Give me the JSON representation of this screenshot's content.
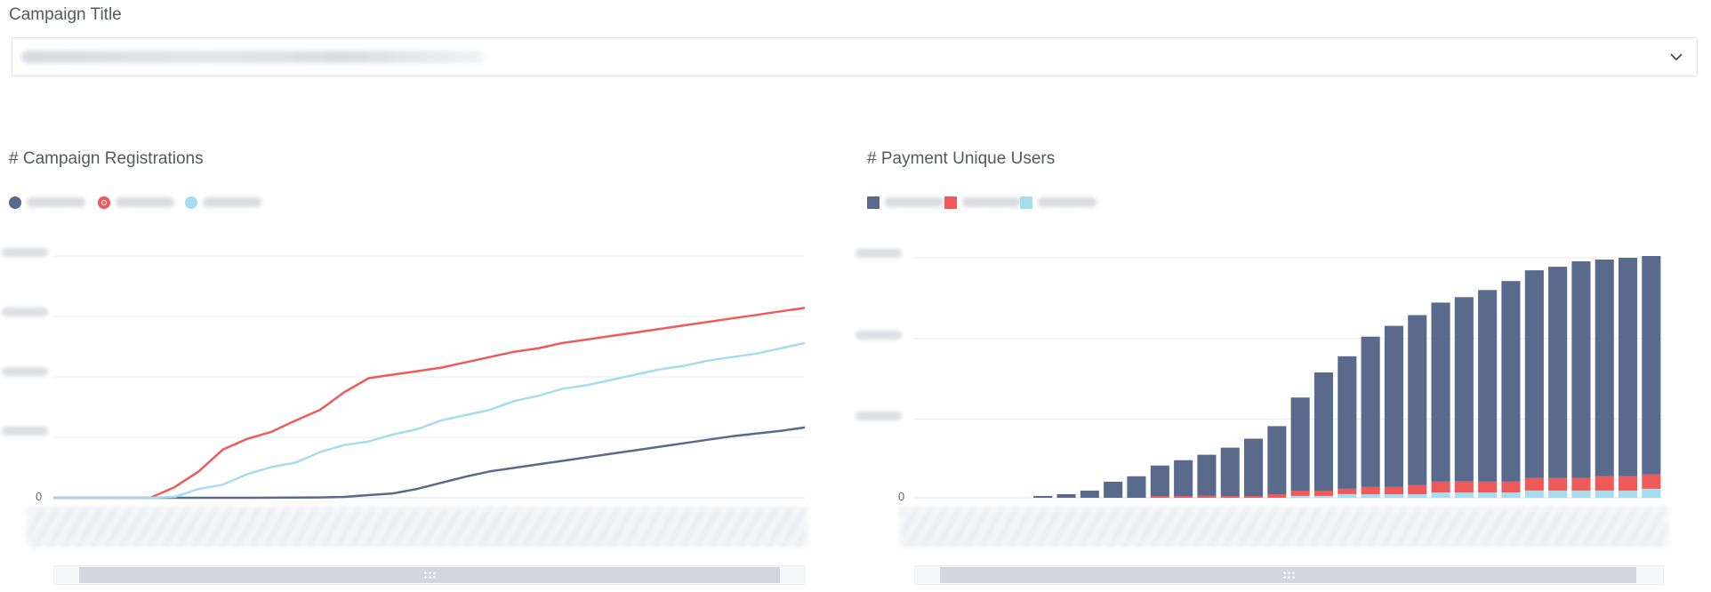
{
  "filter": {
    "label": "Campaign Title",
    "selected_value": ""
  },
  "icons": {
    "dropdown": "chevron-down-icon",
    "scroll_grip": "grip-icon"
  },
  "colors": {
    "series1": "#5a6a8c",
    "series2": "#ee5a5a",
    "series3": "#a5ddef",
    "grid": "#e9ebee",
    "scroll_thumb": "#d3d6dd"
  },
  "chart_data": [
    {
      "type": "line",
      "title": "# Campaign Registrations",
      "ytick_labels": [
        "0"
      ],
      "grid": true,
      "legend_position": "top-left",
      "x_count": 32,
      "series": [
        {
          "color": "#5a6a8c",
          "values": [
            0,
            0,
            0,
            0,
            0,
            0,
            0,
            0,
            0,
            0.1,
            0.2,
            0.4,
            1,
            3,
            5,
            10,
            17,
            24,
            30,
            34,
            38,
            42,
            46,
            50,
            54,
            58,
            62,
            66,
            70,
            73,
            76,
            80
          ]
        },
        {
          "color": "#ee5a5a",
          "values": [
            0,
            0,
            0,
            0,
            0,
            12,
            30,
            55,
            67,
            75,
            88,
            100,
            120,
            136,
            140,
            144,
            148,
            154,
            160,
            166,
            170,
            176,
            180,
            184,
            188,
            192,
            196,
            200,
            204,
            208,
            212,
            216
          ]
        },
        {
          "color": "#a5ddef",
          "values": [
            0,
            0,
            0,
            0,
            0,
            1,
            10,
            15,
            27,
            35,
            40,
            52,
            60,
            64,
            72,
            78,
            88,
            94,
            100,
            110,
            116,
            124,
            128,
            134,
            140,
            146,
            150,
            156,
            160,
            164,
            170,
            176
          ]
        }
      ]
    },
    {
      "type": "bar",
      "title": "# Payment Unique Users",
      "ytick_labels": [
        "0"
      ],
      "grid": true,
      "stacked": true,
      "legend_position": "top-left",
      "x_count": 32,
      "series": [
        {
          "color": "#a5ddef",
          "values": [
            0,
            0,
            0,
            0,
            0,
            0,
            0,
            0,
            0,
            0,
            0,
            0,
            0,
            0,
            0,
            0,
            1,
            1,
            2,
            2,
            2,
            2,
            3,
            3,
            3,
            3,
            4,
            4,
            4,
            4,
            4,
            5
          ]
        },
        {
          "color": "#ee5a5a",
          "values": [
            0,
            0,
            0,
            0,
            0,
            0,
            0,
            0,
            0,
            0,
            1,
            1,
            1,
            1,
            1,
            2,
            3,
            3,
            3,
            4,
            4,
            5,
            6,
            6,
            6,
            6,
            7,
            7,
            7,
            8,
            8,
            8
          ]
        },
        {
          "color": "#5a6a8c",
          "values": [
            0,
            0,
            0,
            0,
            0,
            1,
            2,
            4,
            9,
            12,
            17,
            20,
            23,
            27,
            32,
            38,
            52,
            66,
            74,
            84,
            90,
            95,
            100,
            103,
            107,
            112,
            116,
            118,
            121,
            121,
            122,
            122
          ]
        }
      ]
    }
  ]
}
